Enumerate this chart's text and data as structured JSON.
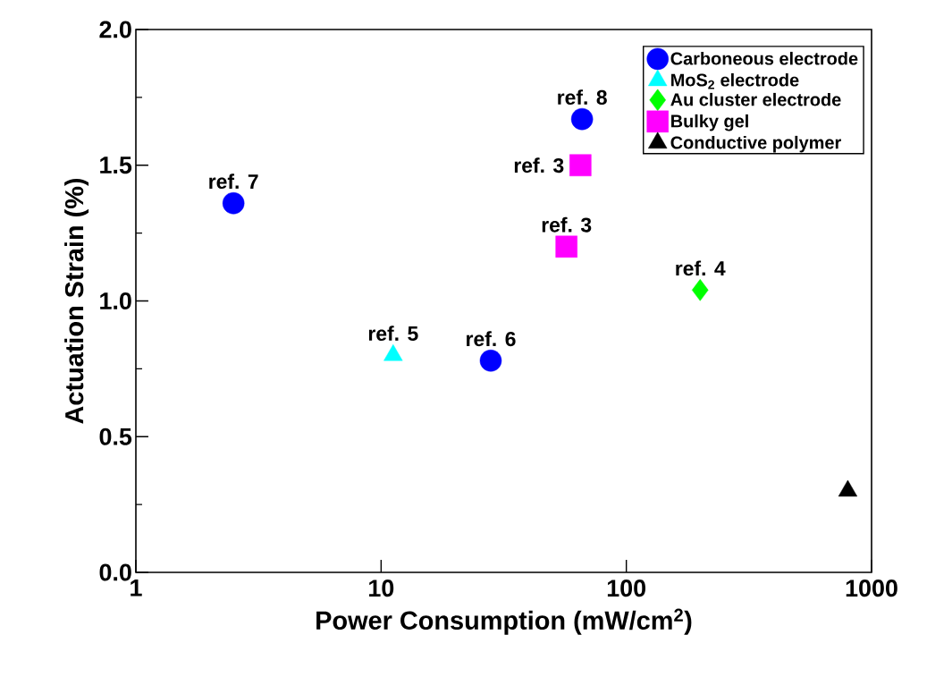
{
  "chart_data": {
    "type": "scatter",
    "xlabel": "Power Consumption (mW/cm$^{2}$)",
    "ylabel": "Actuation Strain (%)",
    "log": "x",
    "xlim": [
      1,
      1000
    ],
    "xticks": [
      1,
      10,
      100,
      1000
    ],
    "ylim": [
      0,
      2
    ],
    "yticks": [
      {
        "value": 0,
        "label": "0.0"
      },
      {
        "value": 0.5,
        "label": "0.5"
      },
      {
        "value": 1,
        "label": "1.0"
      },
      {
        "value": 1.5,
        "label": "1.5"
      },
      {
        "value": 2,
        "label": "2.0"
      }
    ],
    "grid": false,
    "legend": "top right",
    "series": [
      {
        "name": "Carboneous electrode",
        "color": "#0000ff",
        "marker": "circle",
        "x": [
          2.5,
          66,
          28
        ],
        "values": [
          1.36,
          1.67,
          0.78
        ]
      },
      {
        "name": "MoS$_{2}$ electrode",
        "color": "#00ffff",
        "marker": "triangle",
        "x": [
          11.2
        ],
        "values": [
          0.8
        ]
      },
      {
        "name": "Au cluster electrode",
        "color": "#00ff00",
        "marker": "diamond",
        "x": [
          200
        ],
        "values": [
          1.04
        ]
      },
      {
        "name": "Bulky gel",
        "color": "#ff00ff",
        "marker": "square",
        "x": [
          65,
          57
        ],
        "values": [
          1.5,
          1.2
        ]
      },
      {
        "name": "Conductive polymer",
        "color": "#000000",
        "marker": "triangle",
        "x": [
          800
        ],
        "values": [
          0.3
        ]
      }
    ],
    "annotations": [
      {
        "text": "ref. 7",
        "x": 2.5,
        "y": 1.36
      },
      {
        "text": "ref. 8",
        "x": 66,
        "y": 1.67
      },
      {
        "text": "ref. 6",
        "x": 28,
        "y": 0.78
      },
      {
        "text": "ref. 5",
        "x": 11.2,
        "y": 0.8
      },
      {
        "text": "ref. 4",
        "x": 200,
        "y": 1.04
      },
      {
        "text": "ref. 3",
        "x": 65,
        "y": 1.5
      },
      {
        "text": "ref. 3",
        "x": 57,
        "y": 1.2
      }
    ]
  }
}
